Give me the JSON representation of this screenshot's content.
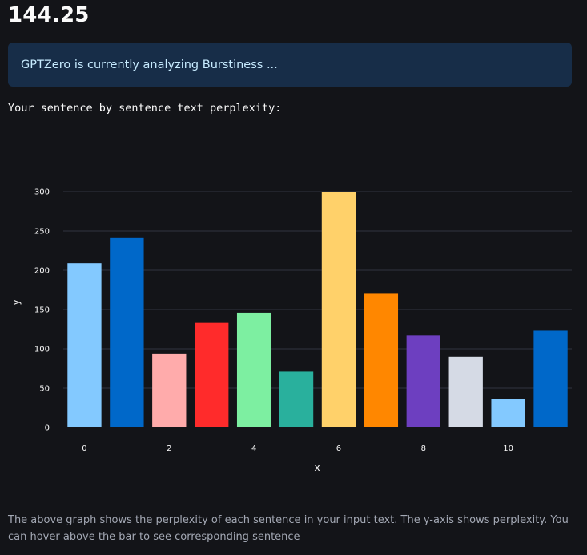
{
  "header": {
    "score": "144.25"
  },
  "info": {
    "message": "GPTZero is currently analyzing Burstiness ..."
  },
  "intro": {
    "text": "Your sentence by sentence text perplexity:"
  },
  "caption": {
    "text": "The above graph shows the perplexity of each sentence in your input text. The y-axis shows perplexity. You can hover above the bar to see corresponding sentence"
  },
  "chart_data": {
    "type": "bar",
    "xlabel": "x",
    "ylabel": "y",
    "x": [
      0,
      1,
      2,
      3,
      4,
      5,
      6,
      7,
      8,
      9,
      10,
      11
    ],
    "values": [
      209,
      241,
      94,
      133,
      146,
      71,
      300,
      171,
      117,
      90,
      36,
      123
    ],
    "colors": [
      "#83c9ff",
      "#0068c9",
      "#ffabab",
      "#ff2b2b",
      "#7defa1",
      "#29b09d",
      "#ffd16a",
      "#ff8700",
      "#6d3fc0",
      "#d5dae5",
      "#83c9ff",
      "#0068c9"
    ],
    "xticks": [
      0,
      2,
      4,
      6,
      8,
      10
    ],
    "yticks": [
      0,
      50,
      100,
      150,
      200,
      250,
      300
    ],
    "ylim": [
      0,
      300
    ],
    "grid": true,
    "legend": false
  }
}
